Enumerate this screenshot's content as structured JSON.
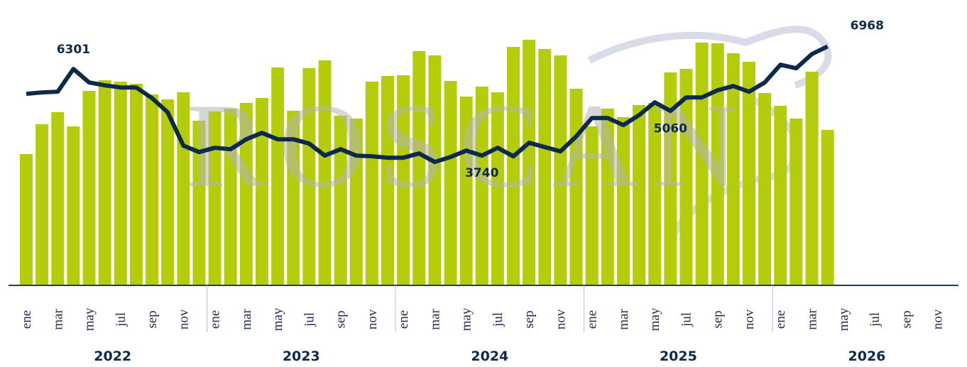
{
  "chart_data": {
    "type": "bar-line",
    "watermark": "ROSCAN",
    "categories": [
      "ene",
      null,
      "mar",
      null,
      "may",
      null,
      "jul",
      null,
      "sep",
      null,
      "nov",
      null,
      "ene",
      null,
      "mar",
      null,
      "may",
      null,
      "jul",
      null,
      "sep",
      null,
      "nov",
      null,
      "ene",
      null,
      "mar",
      null,
      "may",
      null,
      "jul",
      null,
      "sep",
      null,
      "nov",
      null,
      "ene",
      null,
      "mar",
      null,
      "may",
      null,
      "jul",
      null,
      "sep",
      null,
      "nov",
      null,
      "ene",
      null,
      "mar",
      null,
      "may",
      null,
      "jul",
      null,
      "sep",
      null,
      "nov",
      null
    ],
    "years": [
      "2022",
      "2023",
      "2024",
      "2025",
      "2026"
    ],
    "series": [
      {
        "type": "bar",
        "color": "#b5cc0a",
        "axis": "y2",
        "values": [
          185,
          227,
          244,
          224,
          274,
          289,
          287,
          284,
          269,
          262,
          272,
          232,
          245,
          249,
          257,
          264,
          307,
          246,
          306,
          317,
          239,
          235,
          287,
          295,
          296,
          330,
          324,
          288,
          266,
          280,
          272,
          336,
          346,
          333,
          324,
          277,
          224,
          249,
          237,
          254,
          257,
          300,
          305,
          342,
          341,
          327,
          315,
          271,
          253,
          235,
          301,
          219,
          null,
          null,
          null,
          null,
          null,
          null,
          null,
          null
        ]
      },
      {
        "type": "line",
        "color": "#0d2a4a",
        "values": [
          5566,
          5608,
          5629,
          6301,
          5902,
          5818,
          5755,
          5755,
          5440,
          5020,
          4033,
          3844,
          3970,
          3928,
          4222,
          4411,
          4222,
          4222,
          4096,
          3739,
          3928,
          3739,
          3718,
          3676,
          3676,
          3802,
          3550,
          3697,
          3886,
          3740,
          3970,
          3718,
          4117,
          3991,
          3865,
          4306,
          4852,
          4852,
          4642,
          4936,
          5314,
          5060,
          5461,
          5461,
          5671,
          5797,
          5629,
          5902,
          6427,
          6322,
          6742,
          6968,
          null,
          null,
          null,
          null,
          null,
          null,
          null,
          null
        ],
        "value_labels": [
          null,
          null,
          null,
          "6301",
          null,
          null,
          null,
          null,
          null,
          null,
          null,
          null,
          null,
          null,
          null,
          null,
          null,
          null,
          null,
          null,
          null,
          null,
          null,
          null,
          null,
          null,
          null,
          null,
          null,
          "3740",
          null,
          null,
          null,
          null,
          null,
          null,
          null,
          null,
          null,
          null,
          null,
          "5060",
          null,
          null,
          null,
          null,
          null,
          null,
          null,
          null,
          null,
          "6968",
          null,
          null,
          null,
          null,
          null,
          null,
          null,
          null
        ]
      }
    ],
    "ylim": [
      -100,
      7880
    ],
    "y2lim": [
      0,
      380
    ]
  }
}
